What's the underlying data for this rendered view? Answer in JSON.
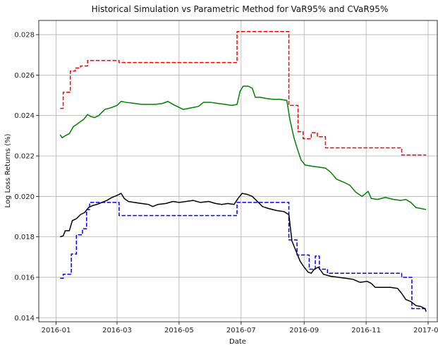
{
  "chart_data": {
    "type": "line",
    "title": "Historical Simulation vs Parametric Method for VaR95% and CVaR95%",
    "xlabel": "Date",
    "ylabel": "Log Loss Returns (%)",
    "x_tick_labels": [
      "2016-01",
      "2016-03",
      "2016-05",
      "2016-07",
      "2016-09",
      "2016-11",
      "2017-01"
    ],
    "y_tick_labels": [
      "0.014",
      "0.016",
      "0.018",
      "0.020",
      "0.022",
      "0.024",
      "0.026",
      "0.028"
    ],
    "ylim": [
      0.0138,
      0.0287
    ],
    "xlim": [
      "2015-12-15",
      "2017-01-10"
    ],
    "grid": true,
    "legend": false,
    "series": [
      {
        "color": "#ff0000",
        "dash": "dashed",
        "points": [
          [
            "2016-01-05",
            0.02435
          ],
          [
            "2016-01-08",
            0.02435
          ],
          [
            "2016-01-08",
            0.02515
          ],
          [
            "2016-01-15",
            0.02515
          ],
          [
            "2016-01-15",
            0.0262
          ],
          [
            "2016-01-20",
            0.0262
          ],
          [
            "2016-01-20",
            0.02635
          ],
          [
            "2016-01-25",
            0.02635
          ],
          [
            "2016-01-25",
            0.02645
          ],
          [
            "2016-02-01",
            0.02645
          ],
          [
            "2016-02-01",
            0.02672
          ],
          [
            "2016-03-03",
            0.02672
          ],
          [
            "2016-03-03",
            0.02662
          ],
          [
            "2016-06-27",
            0.02662
          ],
          [
            "2016-06-27",
            0.02815
          ],
          [
            "2016-08-17",
            0.02815
          ],
          [
            "2016-08-17",
            0.0245
          ],
          [
            "2016-08-26",
            0.0245
          ],
          [
            "2016-08-26",
            0.0232
          ],
          [
            "2016-08-31",
            0.0232
          ],
          [
            "2016-08-31",
            0.02285
          ],
          [
            "2016-09-08",
            0.02285
          ],
          [
            "2016-09-08",
            0.02315
          ],
          [
            "2016-09-14",
            0.02315
          ],
          [
            "2016-09-14",
            0.02295
          ],
          [
            "2016-09-22",
            0.02295
          ],
          [
            "2016-09-22",
            0.0224
          ],
          [
            "2016-12-06",
            0.0224
          ],
          [
            "2016-12-06",
            0.02205
          ],
          [
            "2016-12-30",
            0.02205
          ]
        ]
      },
      {
        "color": "#008000",
        "dash": "solid",
        "points": [
          [
            "2016-01-05",
            0.02305
          ],
          [
            "2016-01-07",
            0.0229
          ],
          [
            "2016-01-10",
            0.023
          ],
          [
            "2016-01-14",
            0.0231
          ],
          [
            "2016-01-18",
            0.02345
          ],
          [
            "2016-01-21",
            0.02355
          ],
          [
            "2016-01-25",
            0.0237
          ],
          [
            "2016-01-28",
            0.0238
          ],
          [
            "2016-02-01",
            0.02405
          ],
          [
            "2016-02-04",
            0.02395
          ],
          [
            "2016-02-08",
            0.0239
          ],
          [
            "2016-02-12",
            0.024
          ],
          [
            "2016-02-18",
            0.0243
          ],
          [
            "2016-02-25",
            0.0244
          ],
          [
            "2016-03-01",
            0.0245
          ],
          [
            "2016-03-05",
            0.0247
          ],
          [
            "2016-03-10",
            0.02465
          ],
          [
            "2016-03-18",
            0.0246
          ],
          [
            "2016-03-25",
            0.02455
          ],
          [
            "2016-04-01",
            0.02455
          ],
          [
            "2016-04-08",
            0.02455
          ],
          [
            "2016-04-15",
            0.0246
          ],
          [
            "2016-04-20",
            0.0247
          ],
          [
            "2016-04-25",
            0.02455
          ],
          [
            "2016-05-01",
            0.0244
          ],
          [
            "2016-05-05",
            0.0243
          ],
          [
            "2016-05-10",
            0.02435
          ],
          [
            "2016-05-15",
            0.0244
          ],
          [
            "2016-05-20",
            0.02445
          ],
          [
            "2016-05-25",
            0.02465
          ],
          [
            "2016-06-01",
            0.02465
          ],
          [
            "2016-06-08",
            0.0246
          ],
          [
            "2016-06-15",
            0.02455
          ],
          [
            "2016-06-22",
            0.0245
          ],
          [
            "2016-06-27",
            0.02455
          ],
          [
            "2016-06-30",
            0.0252
          ],
          [
            "2016-07-03",
            0.02545
          ],
          [
            "2016-07-08",
            0.02545
          ],
          [
            "2016-07-12",
            0.02535
          ],
          [
            "2016-07-15",
            0.0249
          ],
          [
            "2016-07-20",
            0.0249
          ],
          [
            "2016-07-25",
            0.02485
          ],
          [
            "2016-08-01",
            0.0248
          ],
          [
            "2016-08-08",
            0.0248
          ],
          [
            "2016-08-15",
            0.02475
          ],
          [
            "2016-08-18",
            0.0238
          ],
          [
            "2016-08-22",
            0.0229
          ],
          [
            "2016-08-25",
            0.0224
          ],
          [
            "2016-08-29",
            0.0218
          ],
          [
            "2016-09-02",
            0.02155
          ],
          [
            "2016-09-08",
            0.0215
          ],
          [
            "2016-09-15",
            0.02145
          ],
          [
            "2016-09-22",
            0.0214
          ],
          [
            "2016-09-27",
            0.0212
          ],
          [
            "2016-10-03",
            0.02085
          ],
          [
            "2016-10-10",
            0.0207
          ],
          [
            "2016-10-16",
            0.02055
          ],
          [
            "2016-10-22",
            0.0202
          ],
          [
            "2016-10-28",
            0.02
          ],
          [
            "2016-11-03",
            0.02025
          ],
          [
            "2016-11-06",
            0.0199
          ],
          [
            "2016-11-12",
            0.01985
          ],
          [
            "2016-11-20",
            0.01995
          ],
          [
            "2016-11-28",
            0.01985
          ],
          [
            "2016-12-05",
            0.0198
          ],
          [
            "2016-12-10",
            0.01985
          ],
          [
            "2016-12-15",
            0.0197
          ],
          [
            "2016-12-20",
            0.01945
          ],
          [
            "2016-12-25",
            0.0194
          ],
          [
            "2016-12-30",
            0.01935
          ]
        ]
      },
      {
        "color": "#0000ff",
        "dash": "dashed",
        "points": [
          [
            "2016-01-05",
            0.01595
          ],
          [
            "2016-01-08",
            0.01595
          ],
          [
            "2016-01-08",
            0.01615
          ],
          [
            "2016-01-16",
            0.01615
          ],
          [
            "2016-01-16",
            0.01715
          ],
          [
            "2016-01-21",
            0.01715
          ],
          [
            "2016-01-21",
            0.0181
          ],
          [
            "2016-01-27",
            0.0181
          ],
          [
            "2016-01-27",
            0.0184
          ],
          [
            "2016-01-31",
            0.0184
          ],
          [
            "2016-01-31",
            0.01935
          ],
          [
            "2016-02-03",
            0.01935
          ],
          [
            "2016-02-03",
            0.0197
          ],
          [
            "2016-03-03",
            0.0197
          ],
          [
            "2016-03-03",
            0.01905
          ],
          [
            "2016-06-27",
            0.01905
          ],
          [
            "2016-06-27",
            0.0197
          ],
          [
            "2016-08-17",
            0.0197
          ],
          [
            "2016-08-17",
            0.01785
          ],
          [
            "2016-08-25",
            0.01785
          ],
          [
            "2016-08-25",
            0.0171
          ],
          [
            "2016-09-06",
            0.0171
          ],
          [
            "2016-09-06",
            0.0164
          ],
          [
            "2016-09-12",
            0.0164
          ],
          [
            "2016-09-12",
            0.01705
          ],
          [
            "2016-09-16",
            0.01705
          ],
          [
            "2016-09-16",
            0.0164
          ],
          [
            "2016-09-24",
            0.0164
          ],
          [
            "2016-09-24",
            0.0162
          ],
          [
            "2016-12-06",
            0.0162
          ],
          [
            "2016-12-06",
            0.016
          ],
          [
            "2016-12-16",
            0.016
          ],
          [
            "2016-12-16",
            0.01445
          ],
          [
            "2016-12-30",
            0.01445
          ]
        ]
      },
      {
        "color": "#000000",
        "dash": "solid",
        "points": [
          [
            "2016-01-05",
            0.018
          ],
          [
            "2016-01-08",
            0.01805
          ],
          [
            "2016-01-10",
            0.0183
          ],
          [
            "2016-01-14",
            0.0183
          ],
          [
            "2016-01-17",
            0.0188
          ],
          [
            "2016-01-21",
            0.0189
          ],
          [
            "2016-01-25",
            0.0191
          ],
          [
            "2016-01-29",
            0.0192
          ],
          [
            "2016-02-02",
            0.01945
          ],
          [
            "2016-02-06",
            0.01955
          ],
          [
            "2016-02-10",
            0.0196
          ],
          [
            "2016-02-15",
            0.0197
          ],
          [
            "2016-02-20",
            0.0198
          ],
          [
            "2016-02-25",
            0.01995
          ],
          [
            "2016-03-01",
            0.02005
          ],
          [
            "2016-03-05",
            0.02015
          ],
          [
            "2016-03-08",
            0.0199
          ],
          [
            "2016-03-12",
            0.01975
          ],
          [
            "2016-03-18",
            0.0197
          ],
          [
            "2016-03-25",
            0.01965
          ],
          [
            "2016-04-01",
            0.0196
          ],
          [
            "2016-04-05",
            0.0195
          ],
          [
            "2016-04-10",
            0.0196
          ],
          [
            "2016-04-18",
            0.01965
          ],
          [
            "2016-04-25",
            0.01975
          ],
          [
            "2016-05-01",
            0.0197
          ],
          [
            "2016-05-08",
            0.01975
          ],
          [
            "2016-05-15",
            0.0198
          ],
          [
            "2016-05-22",
            0.0197
          ],
          [
            "2016-05-30",
            0.01975
          ],
          [
            "2016-06-06",
            0.01965
          ],
          [
            "2016-06-12",
            0.0196
          ],
          [
            "2016-06-18",
            0.01965
          ],
          [
            "2016-06-24",
            0.0196
          ],
          [
            "2016-06-28",
            0.0199
          ],
          [
            "2016-07-02",
            0.02015
          ],
          [
            "2016-07-07",
            0.0201
          ],
          [
            "2016-07-12",
            0.02
          ],
          [
            "2016-07-17",
            0.01975
          ],
          [
            "2016-07-22",
            0.0195
          ],
          [
            "2016-07-28",
            0.0194
          ],
          [
            "2016-08-05",
            0.0193
          ],
          [
            "2016-08-12",
            0.01925
          ],
          [
            "2016-08-17",
            0.0191
          ],
          [
            "2016-08-20",
            0.0178
          ],
          [
            "2016-08-24",
            0.0173
          ],
          [
            "2016-08-28",
            0.0168
          ],
          [
            "2016-09-01",
            0.0165
          ],
          [
            "2016-09-05",
            0.01625
          ],
          [
            "2016-09-08",
            0.0162
          ],
          [
            "2016-09-11",
            0.0164
          ],
          [
            "2016-09-15",
            0.0165
          ],
          [
            "2016-09-20",
            0.01615
          ],
          [
            "2016-09-27",
            0.01605
          ],
          [
            "2016-10-05",
            0.016
          ],
          [
            "2016-10-12",
            0.01595
          ],
          [
            "2016-10-19",
            0.0159
          ],
          [
            "2016-10-26",
            0.01575
          ],
          [
            "2016-11-02",
            0.0158
          ],
          [
            "2016-11-06",
            0.0157
          ],
          [
            "2016-11-10",
            0.0155
          ],
          [
            "2016-11-18",
            0.0155
          ],
          [
            "2016-11-25",
            0.0155
          ],
          [
            "2016-12-02",
            0.01545
          ],
          [
            "2016-12-06",
            0.0152
          ],
          [
            "2016-12-10",
            0.0149
          ],
          [
            "2016-12-15",
            0.0148
          ],
          [
            "2016-12-20",
            0.0146
          ],
          [
            "2016-12-25",
            0.01455
          ],
          [
            "2016-12-29",
            0.01445
          ],
          [
            "2016-12-30",
            0.0143
          ]
        ]
      }
    ]
  }
}
